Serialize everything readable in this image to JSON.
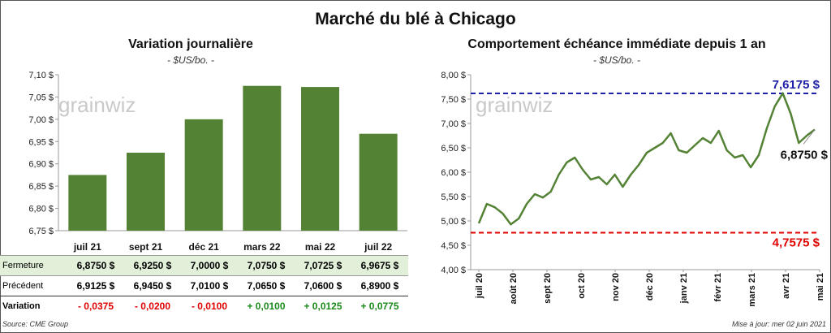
{
  "header": {
    "title": "Marché du blé à Chicago",
    "left_title": "Variation  journalière",
    "left_unit": "- $US/bo. -",
    "right_title": "Comportement  échéance immédiate depuis 1 an",
    "right_unit": "- $US/bo. -"
  },
  "watermark": "grainwiz",
  "footer": {
    "source": "Source: CME Group",
    "updated": "Mise à jour: mer 02 juin 2021"
  },
  "colors": {
    "bar": "#548235",
    "line": "#548235",
    "high": "#1f1fa8",
    "low": "#e00000",
    "table_highlight": "#e2efd9"
  },
  "chart_data": [
    {
      "type": "bar",
      "title": "Variation  journalière",
      "categories": [
        "juil 21",
        "sept 21",
        "déc 21",
        "mars 22",
        "mai 22",
        "juil 22"
      ],
      "values": [
        6.875,
        6.925,
        7.0,
        7.075,
        7.0725,
        6.9675
      ],
      "ylim": [
        6.75,
        7.1
      ],
      "y_ticks": [
        "6,75 $",
        "6,80 $",
        "6,85 $",
        "6,90 $",
        "6,95 $",
        "7,00 $",
        "7,05 $",
        "7,10 $"
      ],
      "grid": false
    },
    {
      "type": "line",
      "title": "Comportement  échéance immédiate depuis 1 an",
      "x": [
        "juil 20",
        "août 20",
        "sept 20",
        "oct 20",
        "nov 20",
        "déc 20",
        "janv 21",
        "févr 21",
        "mars 21",
        "avr 21",
        "mai 21"
      ],
      "series_values": [
        4.95,
        5.35,
        5.28,
        5.15,
        4.93,
        5.05,
        5.35,
        5.55,
        5.48,
        5.6,
        5.95,
        6.2,
        6.3,
        6.05,
        5.85,
        5.9,
        5.75,
        5.95,
        5.7,
        5.95,
        6.15,
        6.4,
        6.5,
        6.6,
        6.8,
        6.45,
        6.4,
        6.55,
        6.7,
        6.6,
        6.85,
        6.45,
        6.3,
        6.35,
        6.1,
        6.35,
        6.9,
        7.35,
        7.62,
        7.2,
        6.6,
        6.75,
        6.875
      ],
      "ylim": [
        4.0,
        8.0
      ],
      "y_ticks": [
        "4,00 $",
        "4,50 $",
        "5,00 $",
        "5,50 $",
        "6,00 $",
        "6,50 $",
        "7,00 $",
        "7,50 $",
        "8,00 $"
      ],
      "reference_lines": [
        {
          "label": "7,6175 $",
          "value": 7.6175,
          "color": "#1f1fa8"
        },
        {
          "label": "4,7575 $",
          "value": 4.7575,
          "color": "#e00000"
        }
      ],
      "last_label": "6,8750 $",
      "grid": false
    }
  ],
  "table": {
    "rows": [
      {
        "label": "Fermeture",
        "values": [
          "6,8750  $",
          "6,9250  $",
          "7,0000  $",
          "7,0750  $",
          "7,0725  $",
          "6,9675  $"
        ]
      },
      {
        "label": "Précédent",
        "values": [
          "6,9125  $",
          "6,9450  $",
          "7,0100  $",
          "7,0650  $",
          "7,0600  $",
          "6,8900  $"
        ]
      },
      {
        "label": "Variation",
        "values": [
          "- 0,0375",
          "- 0,0200",
          "- 0,0100",
          "+ 0,0100",
          "+ 0,0125",
          "+ 0,0775"
        ],
        "signs": [
          "neg",
          "neg",
          "neg",
          "pos",
          "pos",
          "pos"
        ]
      }
    ]
  }
}
